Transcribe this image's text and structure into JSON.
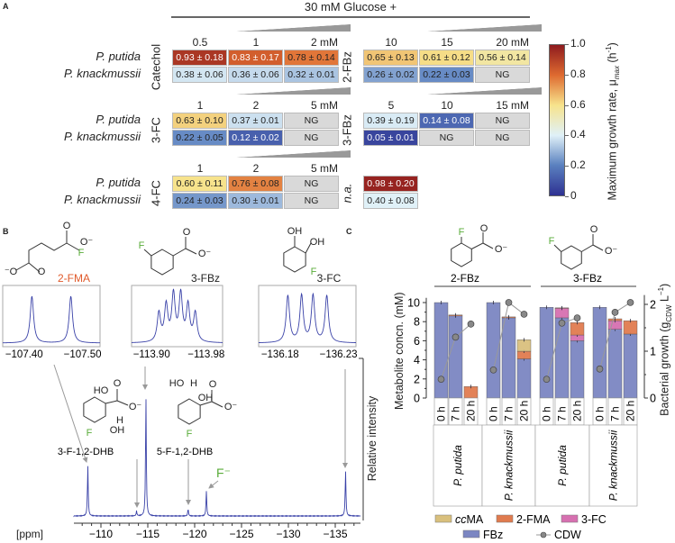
{
  "panel_labels": {
    "a": "A",
    "b": "B",
    "c": "C"
  },
  "panel_a": {
    "title": "30 mM Glucose +",
    "strains": [
      "P. putida",
      "P. knackmussii"
    ],
    "blocks": [
      {
        "compound": "Catechol",
        "concs": [
          "0.5",
          "1",
          "2 mM"
        ],
        "rows": [
          [
            {
              "text": "0.93 ± 0.18",
              "value": 0.93
            },
            {
              "text": "0.83 ± 0.17",
              "value": 0.83
            },
            {
              "text": "0.78 ± 0.14",
              "value": 0.78
            }
          ],
          [
            {
              "text": "0.38 ± 0.06",
              "value": 0.38
            },
            {
              "text": "0.36 ± 0.06",
              "value": 0.36
            },
            {
              "text": "0.32 ± 0.01",
              "value": 0.32
            }
          ]
        ]
      },
      {
        "compound": "2-FBz",
        "concs": [
          "10",
          "15",
          "20 mM"
        ],
        "rows": [
          [
            {
              "text": "0.65 ± 0.13",
              "value": 0.65
            },
            {
              "text": "0.61 ± 0.12",
              "value": 0.61
            },
            {
              "text": "0.56 ± 0.14",
              "value": 0.56
            }
          ],
          [
            {
              "text": "0.26 ± 0.02",
              "value": 0.26
            },
            {
              "text": "0.22 ± 0.03",
              "value": 0.22
            },
            {
              "text": "NG",
              "value": null
            }
          ]
        ]
      },
      {
        "compound": "3-FC",
        "concs": [
          "1",
          "2",
          "5 mM"
        ],
        "rows": [
          [
            {
              "text": "0.63 ± 0.10",
              "value": 0.63
            },
            {
              "text": "0.37 ± 0.01",
              "value": 0.37
            },
            {
              "text": "NG",
              "value": null
            }
          ],
          [
            {
              "text": "0.22 ± 0.05",
              "value": 0.22
            },
            {
              "text": "0.12 ± 0.02",
              "value": 0.12
            },
            {
              "text": "NG",
              "value": null
            }
          ]
        ]
      },
      {
        "compound": "3-FBz",
        "concs": [
          "5",
          "10",
          "15 mM"
        ],
        "rows": [
          [
            {
              "text": "0.39 ± 0.19",
              "value": 0.39
            },
            {
              "text": "0.14 ± 0.08",
              "value": 0.14
            },
            {
              "text": "NG",
              "value": null
            }
          ],
          [
            {
              "text": "0.05 ± 0.01",
              "value": 0.05
            },
            {
              "text": "NG",
              "value": null
            },
            {
              "text": "NG",
              "value": null
            }
          ]
        ]
      },
      {
        "compound": "4-FC",
        "concs": [
          "1",
          "2",
          "5 mM"
        ],
        "rows": [
          [
            {
              "text": "0.60 ± 0.11",
              "value": 0.6
            },
            {
              "text": "0.76 ± 0.08",
              "value": 0.76
            },
            {
              "text": "NG",
              "value": null
            }
          ],
          [
            {
              "text": "0.24 ± 0.03",
              "value": 0.24
            },
            {
              "text": "0.30 ± 0.01",
              "value": 0.3
            },
            {
              "text": "NG",
              "value": null
            }
          ]
        ]
      },
      {
        "compound": "n.a.",
        "concs": [],
        "rows": [
          [
            {
              "text": "0.98 ± 0.20",
              "value": 0.98
            }
          ],
          [
            {
              "text": "0.40 ± 0.08",
              "value": 0.4
            }
          ]
        ]
      }
    ],
    "colorbar": {
      "label_main": "Maximum growth rate, μ",
      "label_sub": "max",
      "label_unit": " (h",
      "label_sup": "-1",
      "label_close": ")",
      "ticks": [
        "0",
        "0.2",
        "0.4",
        "0.6",
        "0.8",
        "1.0"
      ],
      "range": [
        0,
        1
      ],
      "colors": [
        "#2e3192",
        "#5a80bf",
        "#e0f1f8",
        "#f7e38c",
        "#de6a30",
        "#8e1b1e"
      ],
      "ng_color": "#d9d9d9"
    }
  },
  "structures": {
    "fma": [
      "O",
      "O⁻",
      "F",
      "⁻O",
      "O"
    ],
    "fbz3": [
      "F",
      "O",
      "O⁻"
    ],
    "fc3": [
      "OH",
      "OH",
      "F"
    ],
    "dhb3": [
      "HO",
      "O",
      "O⁻",
      "H",
      "OH",
      "F"
    ],
    "dhb5": [
      "HO",
      "H",
      "OH",
      "O",
      "O⁻",
      "F"
    ],
    "c_fbz2": [
      "F",
      "O",
      "O⁻"
    ],
    "c_fbz3": [
      "F",
      "O",
      "O⁻"
    ]
  },
  "chart_data": [
    {
      "type": "line",
      "title": "",
      "xlabel": "[ppm]",
      "ylabel": "Relative intensity",
      "x_ticks": [
        "−110",
        "−115",
        "−120",
        "−125",
        "−130",
        "−135"
      ],
      "peaks": [
        {
          "label": "2-FMA",
          "ppm": -108.6,
          "rel_height": 0.42,
          "color": "#e05a2b"
        },
        {
          "label": "3-F-1,2-DHB",
          "ppm": -113.8,
          "rel_height": 0.04
        },
        {
          "label": "3-FBz",
          "ppm": -114.8,
          "rel_height": 1.0
        },
        {
          "label": "5-F-1,2-DHB",
          "ppm": -119.3,
          "rel_height": 0.06
        },
        {
          "label": "F⁻",
          "ppm": -121.25,
          "rel_height": 0.21,
          "color": "#5aac3a"
        },
        {
          "label": "3-FC",
          "ppm": -136.1,
          "rel_height": 0.38
        }
      ],
      "insets": [
        {
          "label": "2-FMA",
          "ticks": [
            "−107.40",
            "−107.50"
          ],
          "multiplet": [
            -107.425,
            -107.455
          ]
        },
        {
          "label": "3-FBz",
          "ticks": [
            "−113.90",
            "−113.98"
          ],
          "multiplet": [
            -113.924,
            -113.929,
            -113.934,
            -113.939,
            -113.944,
            -113.949
          ]
        },
        {
          "label": "3-FC",
          "ticks": [
            "−136.18",
            "−136.23"
          ],
          "multiplet": [
            -136.191,
            -136.197,
            -136.202,
            -136.208
          ]
        }
      ]
    },
    {
      "type": "bar",
      "stacked": true,
      "title": "",
      "ylabel": "Metabolite concn. (mM)",
      "ylabel2_main": "Bacterial growth (g",
      "ylabel2_sub": "CDW",
      "ylabel2_unit": " L",
      "ylabel2_sup": "−1",
      "ylabel2_close": ")",
      "ylim": [
        0,
        10.5
      ],
      "y_ticks": [
        "0",
        "2",
        "4",
        "6",
        "8",
        "10"
      ],
      "ylim2": [
        0,
        2.1
      ],
      "y2_ticks": [
        "0",
        "1",
        "2"
      ],
      "substrates": [
        "2-FBz",
        "3-FBz"
      ],
      "times": [
        "0 h",
        "7 h",
        "20 h"
      ],
      "legend": [
        {
          "key": "ccMA",
          "label_it": "cc",
          "label": "MA",
          "color": "#d9c07d"
        },
        {
          "key": "2FMA",
          "label_it": "",
          "label": "2-FMA",
          "color": "#e07b4f"
        },
        {
          "key": "3FC",
          "label_it": "",
          "label": "3-FC",
          "color": "#d670b0"
        },
        {
          "key": "FBz",
          "label_it": "",
          "label": "FBz",
          "color": "#7b86c2"
        },
        {
          "key": "CDW",
          "label_it": "",
          "label": "CDW",
          "color": "#888888"
        }
      ],
      "groups": [
        {
          "substrate": "2-FBz",
          "strain": "P. putida",
          "bars": [
            {
              "FBz": 10.0,
              "3FC": 0,
              "2FMA": 0,
              "ccMA": 0,
              "CDW": 0.4
            },
            {
              "FBz": 8.6,
              "3FC": 0,
              "2FMA": 0.1,
              "ccMA": 0,
              "CDW": 1.3
            },
            {
              "FBz": 0,
              "3FC": 0,
              "2FMA": 1.2,
              "ccMA": 0,
              "CDW": 1.58
            }
          ]
        },
        {
          "substrate": "2-FBz",
          "strain": "P. knackmussii",
          "bars": [
            {
              "FBz": 10.0,
              "3FC": 0,
              "2FMA": 0,
              "ccMA": 0,
              "CDW": 0.6
            },
            {
              "FBz": 8.4,
              "3FC": 0,
              "2FMA": 0.1,
              "ccMA": 0,
              "CDW": 2.04
            },
            {
              "FBz": 4.1,
              "3FC": 0,
              "2FMA": 0.8,
              "ccMA": 1.2,
              "CDW": 1.79
            }
          ]
        },
        {
          "substrate": "3-FBz",
          "strain": "P. putida",
          "bars": [
            {
              "FBz": 9.5,
              "3FC": 0,
              "2FMA": 0,
              "ccMA": 0,
              "CDW": 0.4
            },
            {
              "FBz": 8.4,
              "3FC": 1.0,
              "2FMA": 0.05,
              "ccMA": 0,
              "CDW": 1.6
            },
            {
              "FBz": 6.0,
              "3FC": 0.6,
              "2FMA": 1.3,
              "ccMA": 0,
              "CDW": 1.71
            }
          ]
        },
        {
          "substrate": "3-FBz",
          "strain": "P. knackmussii",
          "bars": [
            {
              "FBz": 9.5,
              "3FC": 0,
              "2FMA": 0,
              "ccMA": 0,
              "CDW": 0.62
            },
            {
              "FBz": 7.2,
              "3FC": 0.9,
              "2FMA": 0.2,
              "ccMA": 0,
              "CDW": 1.83
            },
            {
              "FBz": 6.7,
              "3FC": 0,
              "2FMA": 1.4,
              "ccMA": 0,
              "CDW": 2.04
            }
          ]
        }
      ]
    }
  ]
}
